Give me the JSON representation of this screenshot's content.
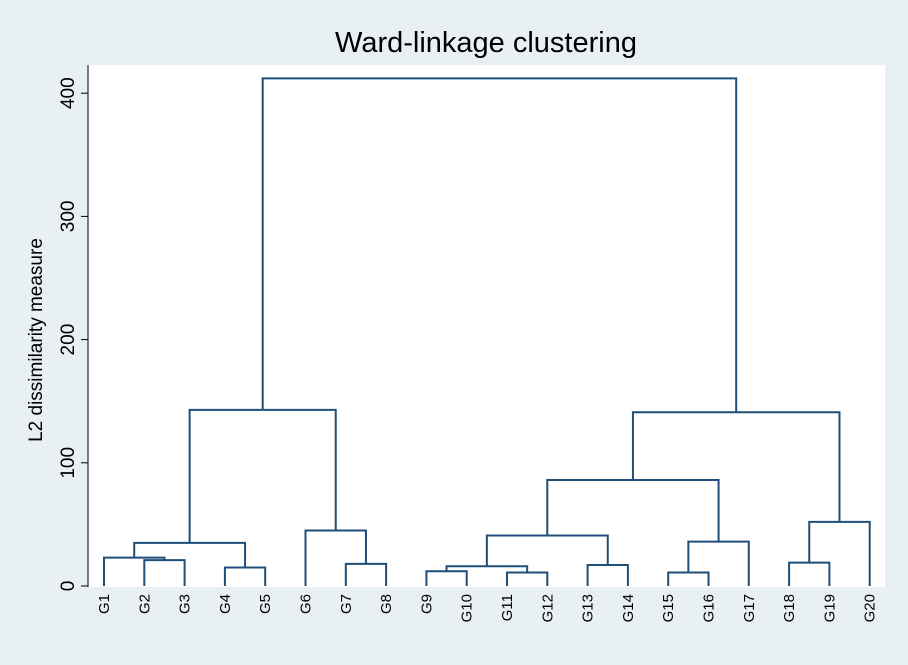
{
  "chart_data": {
    "type": "dendrogram",
    "title": "Ward-linkage clustering",
    "xlabel": "",
    "ylabel": "L2 dissimilarity measure",
    "ylim": [
      0,
      412
    ],
    "yticks": [
      0,
      100,
      200,
      300,
      400
    ],
    "leaves": [
      "G1",
      "G2",
      "G3",
      "G4",
      "G5",
      "G6",
      "G7",
      "G8",
      "G9",
      "G10",
      "G11",
      "G12",
      "G13",
      "G14",
      "G15",
      "G16",
      "G17",
      "G18",
      "G19",
      "G20"
    ],
    "merges": [
      {
        "a": "G9",
        "b": "G10",
        "height": 12
      },
      {
        "a": "G11",
        "b": "G12",
        "height": 11
      },
      {
        "a": "G15",
        "b": "G16",
        "height": 11
      },
      {
        "a": "G4",
        "b": "G5",
        "height": 15
      },
      {
        "a": "G13",
        "b": "G14",
        "height": 17
      },
      {
        "a": "G7",
        "b": "G8",
        "height": 18
      },
      {
        "a": "G18",
        "b": "G19",
        "height": 19
      },
      {
        "a": "G2",
        "b": "G3",
        "height": 21
      },
      {
        "a": "C1",
        "b": "C2",
        "height": 16
      },
      {
        "a": "G1",
        "b": "C8",
        "height": 23
      },
      {
        "a": "C10",
        "b": "C4",
        "height": 35
      },
      {
        "a": "C3",
        "b": "G17",
        "height": 36
      },
      {
        "a": "C9",
        "b": "C5",
        "height": 41
      },
      {
        "a": "G6",
        "b": "C6",
        "height": 45
      },
      {
        "a": "C7",
        "b": "G20",
        "height": 52
      },
      {
        "a": "C13",
        "b": "C12",
        "height": 86
      },
      {
        "a": "C16",
        "b": "C15",
        "height": 141
      },
      {
        "a": "C11",
        "b": "C14",
        "height": 143
      },
      {
        "a": "C18",
        "b": "C17",
        "height": 412
      }
    ],
    "grid": false,
    "legend": "none",
    "colors": {
      "background": "#e9f0f3",
      "plot_area": "#ffffff",
      "lines": "#1f4e79",
      "text": "#000000"
    }
  }
}
